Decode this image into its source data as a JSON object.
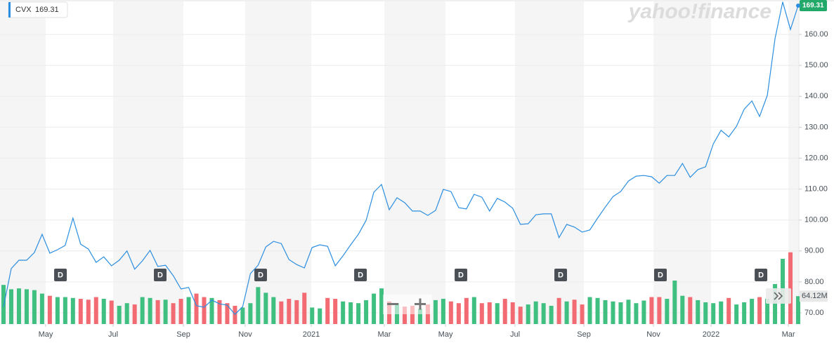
{
  "chart_data": {
    "type": "line",
    "watermark": "yahoo!finance",
    "series": [
      {
        "name": "CVX",
        "color": "#2b8ee0",
        "values": [
          72.0,
          84.3,
          87.0,
          87.0,
          89.5,
          95.4,
          89.3,
          90.4,
          91.8,
          100.6,
          92.2,
          90.6,
          86.3,
          88.1,
          85.2,
          87.0,
          90.0,
          84.1,
          86.8,
          90.2,
          85.0,
          85.4,
          82.0,
          77.7,
          78.2,
          72.3,
          71.8,
          74.1,
          72.9,
          72.5,
          69.5,
          72.0,
          82.7,
          85.4,
          91.3,
          93.1,
          92.4,
          87.2,
          85.6,
          84.5,
          91.1,
          92.0,
          91.5,
          85.2,
          88.4,
          92.0,
          95.4,
          99.9,
          109.0,
          111.5,
          103.3,
          107.2,
          105.6,
          102.9,
          102.9,
          101.5,
          103.1,
          109.9,
          109.2,
          104.0,
          103.6,
          108.3,
          107.4,
          102.9,
          107.0,
          105.8,
          103.8,
          98.6,
          98.8,
          101.7,
          102.0,
          102.0,
          94.3,
          98.6,
          97.7,
          96.1,
          96.8,
          100.6,
          104.2,
          107.6,
          109.2,
          112.6,
          114.2,
          114.4,
          114.0,
          111.9,
          114.4,
          114.4,
          118.3,
          113.8,
          116.3,
          117.2,
          124.6,
          129.0,
          126.9,
          130.3,
          135.8,
          138.5,
          133.5,
          140.3,
          158.7,
          170.5,
          161.6,
          169.31
        ]
      }
    ],
    "volume": {
      "up_color": "#3fbf80",
      "down_color": "#f26b72",
      "values": [
        90,
        80,
        82,
        80,
        78,
        70,
        65,
        62,
        62,
        60,
        58,
        56,
        62,
        58,
        54,
        42,
        48,
        45,
        62,
        60,
        55,
        56,
        48,
        58,
        62,
        70,
        62,
        60,
        55,
        48,
        42,
        38,
        48,
        85,
        72,
        62,
        52,
        58,
        55,
        72,
        38,
        36,
        60,
        58,
        52,
        50,
        48,
        55,
        70,
        82,
        52,
        48,
        40,
        42,
        35,
        45,
        55,
        58,
        52,
        48,
        60,
        62,
        48,
        50,
        48,
        58,
        50,
        40,
        45,
        52,
        48,
        42,
        60,
        52,
        56,
        45,
        62,
        60,
        55,
        52,
        50,
        56,
        48,
        54,
        62,
        62,
        58,
        100,
        65,
        62,
        55,
        50,
        48,
        52,
        60,
        45,
        50,
        58,
        62,
        58,
        92,
        150,
        165,
        64.12
      ],
      "last_label": "64.12M"
    },
    "xlim": [
      0,
      103
    ],
    "xticks": [
      {
        "value": 5.46,
        "label": "May"
      },
      {
        "value": 14.21,
        "label": "Jul"
      },
      {
        "value": 23.32,
        "label": "Sep"
      },
      {
        "value": 31.33,
        "label": "Nov"
      },
      {
        "value": 39.89,
        "label": "2021"
      },
      {
        "value": 49.36,
        "label": "Mar"
      },
      {
        "value": 57.29,
        "label": "May"
      },
      {
        "value": 66.3,
        "label": "Jul"
      },
      {
        "value": 75.23,
        "label": "Sep"
      },
      {
        "value": 84.24,
        "label": "Nov"
      },
      {
        "value": 91.71,
        "label": "2022"
      },
      {
        "value": 101.73,
        "label": "Mar"
      }
    ],
    "ylim": [
      66.37,
      170.68
    ],
    "yticks": [
      {
        "value": 70,
        "label": "70.00"
      },
      {
        "value": 80,
        "label": "80.00"
      },
      {
        "value": 90,
        "label": "90.00"
      },
      {
        "value": 100,
        "label": "100.00"
      },
      {
        "value": 110,
        "label": "110.00"
      },
      {
        "value": 120,
        "label": "120.00"
      },
      {
        "value": 130,
        "label": "130.00"
      },
      {
        "value": 140,
        "label": "140.00"
      },
      {
        "value": 150,
        "label": "150.00"
      },
      {
        "value": 160,
        "label": "160.00"
      }
    ],
    "dividends": [
      {
        "x": 7.38,
        "label": "D"
      },
      {
        "x": 20.31,
        "label": "D"
      },
      {
        "x": 33.33,
        "label": "D"
      },
      {
        "x": 46.27,
        "label": "D"
      },
      {
        "x": 59.29,
        "label": "D"
      },
      {
        "x": 72.22,
        "label": "D"
      },
      {
        "x": 85.15,
        "label": "D"
      },
      {
        "x": 98.18,
        "label": "D"
      }
    ],
    "grid": true
  }
}
